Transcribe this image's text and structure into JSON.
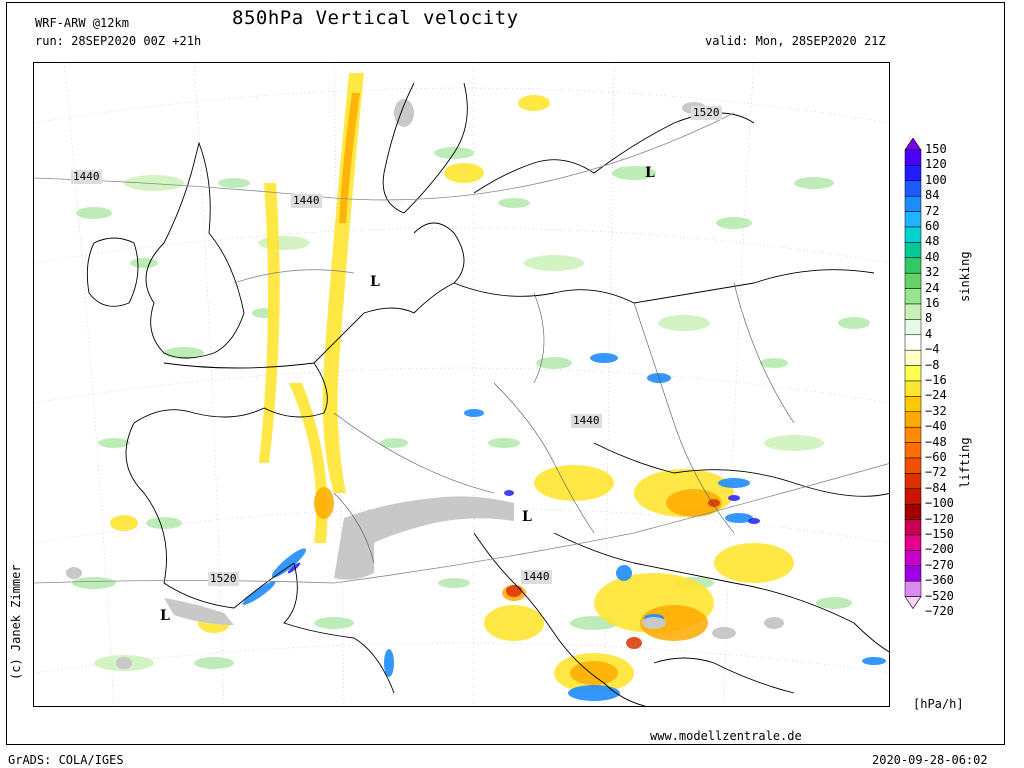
{
  "header": {
    "title": "850hPa Vertical velocity",
    "model": "WRF-ARW @12km",
    "run": "run: 28SEP2020 00Z +21h",
    "valid": "valid: Mon, 28SEP2020 21Z"
  },
  "footer": {
    "grads": "GrADS: COLA/IGES",
    "timestamp": "2020-09-28-06:02",
    "website": "www.modellzentrale.de",
    "author": "(c) Janek Zimmer"
  },
  "colorbar": {
    "units": "[hPa/h]",
    "upper_label": "sinking",
    "lower_label": "lifting",
    "ticks": [
      "150",
      "120",
      "100",
      "84",
      "72",
      "60",
      "48",
      "40",
      "32",
      "24",
      "16",
      "8",
      "4",
      "−4",
      "−8",
      "−16",
      "−24",
      "−32",
      "−40",
      "−48",
      "−60",
      "−72",
      "−84",
      "−100",
      "−120",
      "−150",
      "−200",
      "−270",
      "−360",
      "−520",
      "−720"
    ],
    "colors": [
      "#7a00e6",
      "#4b00ff",
      "#1e1eff",
      "#1e5aff",
      "#1e8cff",
      "#1eb4ff",
      "#00d2d2",
      "#00c896",
      "#32c864",
      "#64d264",
      "#96e68c",
      "#c8f0b4",
      "#e6fae6",
      "#ffffff",
      "#ffffc8",
      "#ffff50",
      "#ffe632",
      "#ffc800",
      "#ffaa00",
      "#ff8c00",
      "#ff6e00",
      "#f05000",
      "#dc3200",
      "#c81400",
      "#a00000",
      "#c80050",
      "#e6008c",
      "#c800c8",
      "#a000e6",
      "#dc8cf0",
      "#f8d2f8"
    ]
  },
  "map": {
    "isobar_labels": [
      "1440",
      "1440",
      "1520",
      "1440",
      "1520",
      "1440"
    ],
    "low_markers": [
      "L",
      "L",
      "L",
      "L"
    ]
  }
}
